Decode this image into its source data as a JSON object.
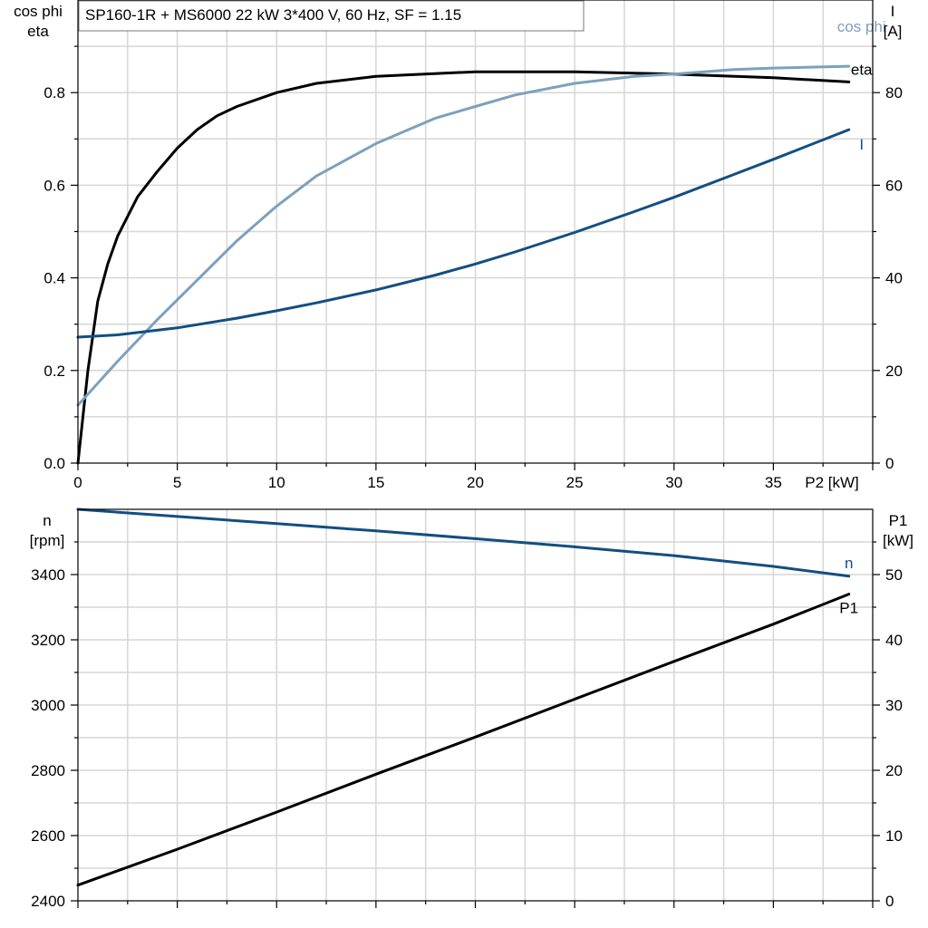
{
  "chart_data": [
    {
      "type": "line",
      "title": "SP160-1R + MS6000   22 kW   3*400 V, 60 Hz, SF = 1.15",
      "xlabel": "P2 [kW]",
      "ylabel_left": [
        "cos phi",
        "eta"
      ],
      "ylabel_right": [
        "I",
        "[A]"
      ],
      "xlim": [
        0,
        40
      ],
      "ylim_left": [
        0,
        1.0
      ],
      "ylim_right": [
        0,
        100
      ],
      "xticks": [
        "0",
        "5",
        "10",
        "15",
        "20",
        "25",
        "30",
        "35"
      ],
      "yticks_left": [
        "0.0",
        "0.2",
        "0.4",
        "0.6",
        "0.8"
      ],
      "yticks_right": [
        "0",
        "20",
        "40",
        "60",
        "80"
      ],
      "grid": true,
      "series": [
        {
          "name": "eta",
          "axis": "left",
          "color": "#000000",
          "x": [
            0,
            0.5,
            1,
            1.5,
            2,
            3,
            4,
            5,
            6,
            7,
            8,
            10,
            12,
            15,
            20,
            25,
            30,
            35,
            38.8
          ],
          "y": [
            0.0,
            0.2,
            0.35,
            0.43,
            0.49,
            0.575,
            0.63,
            0.68,
            0.72,
            0.75,
            0.77,
            0.8,
            0.82,
            0.835,
            0.845,
            0.845,
            0.84,
            0.832,
            0.823
          ]
        },
        {
          "name": "cos phi",
          "axis": "left",
          "color": "#7da0bd",
          "x": [
            0,
            2,
            4,
            6,
            8,
            10,
            12,
            15,
            18,
            20,
            22,
            25,
            28,
            30,
            33,
            35,
            38.8
          ],
          "y": [
            0.125,
            0.22,
            0.31,
            0.395,
            0.48,
            0.555,
            0.62,
            0.69,
            0.745,
            0.77,
            0.795,
            0.82,
            0.835,
            0.84,
            0.85,
            0.853,
            0.857
          ]
        },
        {
          "name": "I",
          "axis": "right",
          "color": "#124e82",
          "x": [
            0,
            2,
            5,
            8,
            10,
            12,
            15,
            18,
            20,
            22,
            25,
            28,
            30,
            33,
            35,
            38.8
          ],
          "y": [
            27.2,
            27.7,
            29.2,
            31.3,
            32.9,
            34.6,
            37.4,
            40.6,
            43.0,
            45.6,
            49.8,
            54.3,
            57.4,
            62.3,
            65.6,
            72.0
          ]
        }
      ]
    },
    {
      "type": "line",
      "xlabel": "",
      "ylabel_left": [
        "n",
        "[rpm]"
      ],
      "ylabel_right": [
        "P1",
        "[kW]"
      ],
      "xlim": [
        0,
        40
      ],
      "ylim_left": [
        2400,
        3600
      ],
      "ylim_right": [
        0,
        60
      ],
      "yticks_left": [
        "2400",
        "2600",
        "2800",
        "3000",
        "3200",
        "3400"
      ],
      "yticks_right": [
        "0",
        "10",
        "20",
        "30",
        "40",
        "50"
      ],
      "grid": true,
      "series": [
        {
          "name": "n",
          "axis": "left",
          "color": "#124e82",
          "x": [
            0,
            5,
            10,
            15,
            20,
            25,
            30,
            35,
            38.8
          ],
          "y": [
            3600,
            3578,
            3556,
            3534,
            3510,
            3485,
            3458,
            3425,
            3395
          ]
        },
        {
          "name": "P1",
          "axis": "right",
          "color": "#000000",
          "x": [
            0,
            5,
            10,
            15,
            20,
            25,
            30,
            35,
            38.8
          ],
          "y": [
            2.4,
            7.9,
            13.6,
            19.4,
            25.1,
            30.9,
            36.7,
            42.4,
            47.0
          ]
        }
      ]
    }
  ]
}
